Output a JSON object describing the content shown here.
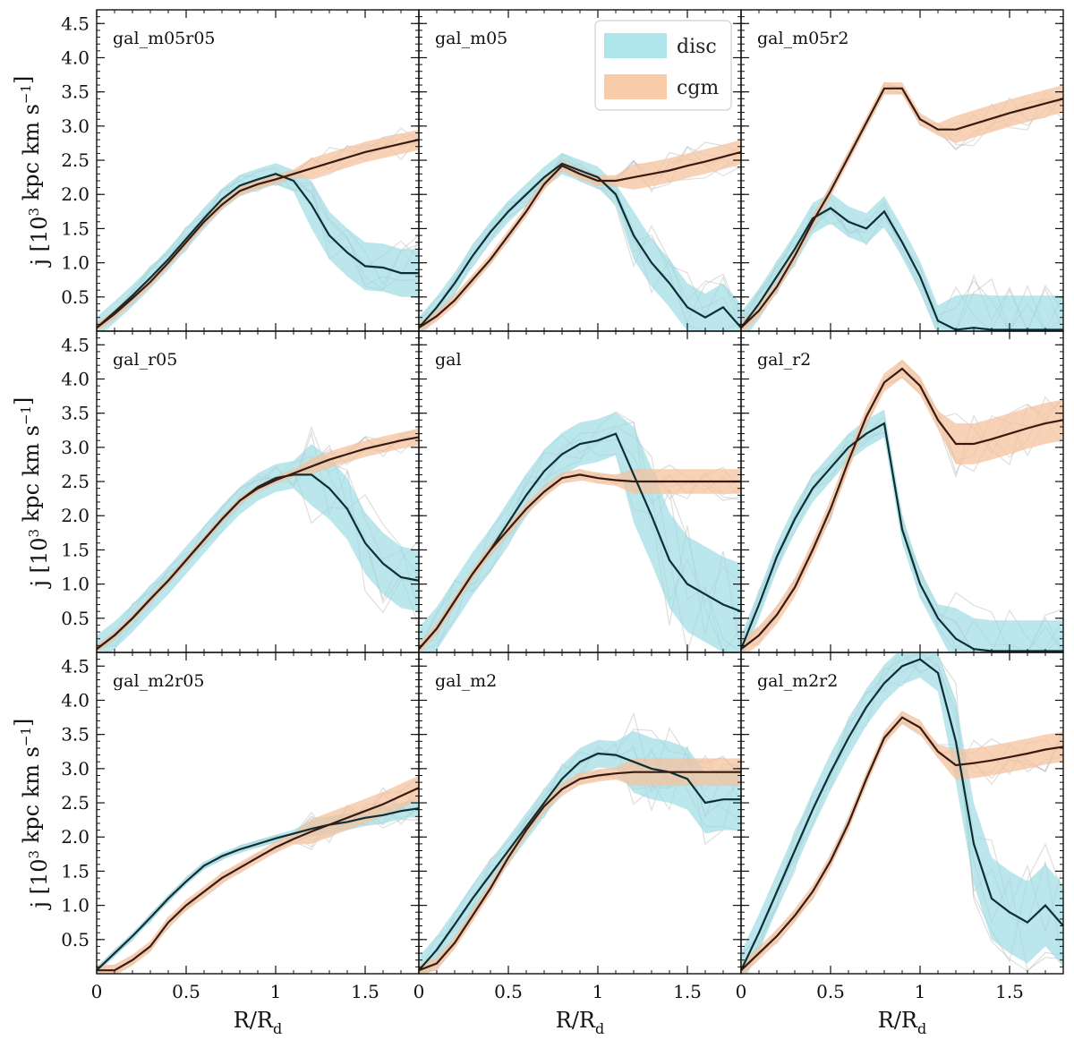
{
  "chart_data": {
    "type": "line",
    "title": "",
    "xlabel": "R/R",
    "xlabel_subscript": "d",
    "ylabel": "j [10",
    "ylabel_exponent": "3",
    "ylabel_units": " kpc km s",
    "ylabel_units_exponent": "−1",
    "ylabel_close": "]",
    "xlim": [
      0,
      1.8
    ],
    "ylim": [
      0.0,
      4.7
    ],
    "xticks": [
      "0",
      "0.5",
      "1",
      "1.5"
    ],
    "yticks": [
      "0.5",
      "1.0",
      "1.5",
      "2.0",
      "2.5",
      "3.0",
      "3.5",
      "4.0",
      "4.5"
    ],
    "grid": false,
    "legend_location": "top-right of top-middle panel",
    "legend": [
      {
        "label": "disc",
        "color": "#aee6ec"
      },
      {
        "label": "cgm",
        "color": "#f8cba9"
      }
    ],
    "colors": {
      "disc_band": "#9edbe3",
      "cgm_band": "#f4c39f",
      "disc_line": "#0c2f36",
      "cgm_line": "#3a1a10",
      "spaghetti": "#b5b5b5"
    },
    "panels": [
      {
        "name": "gal_m05r05",
        "x": [
          0,
          0.1,
          0.2,
          0.3,
          0.4,
          0.5,
          0.6,
          0.7,
          0.8,
          0.9,
          1.0,
          1.1,
          1.2,
          1.3,
          1.4,
          1.5,
          1.6,
          1.7,
          1.8
        ],
        "disc": [
          0.05,
          0.28,
          0.52,
          0.78,
          1.05,
          1.35,
          1.65,
          1.93,
          2.13,
          2.22,
          2.3,
          2.2,
          1.85,
          1.4,
          1.15,
          0.95,
          0.93,
          0.85,
          0.85
        ],
        "disc_spread": 0.35,
        "cgm": [
          0.05,
          0.25,
          0.48,
          0.72,
          1.0,
          1.3,
          1.6,
          1.85,
          2.05,
          2.15,
          2.22,
          2.3,
          2.38,
          2.46,
          2.54,
          2.62,
          2.68,
          2.74,
          2.8
        ],
        "cgm_spread": 0.15
      },
      {
        "name": "gal_m05",
        "x": [
          0,
          0.1,
          0.2,
          0.3,
          0.4,
          0.5,
          0.6,
          0.7,
          0.8,
          0.9,
          1.0,
          1.1,
          1.2,
          1.3,
          1.4,
          1.5,
          1.6,
          1.7,
          1.8
        ],
        "disc": [
          0.05,
          0.35,
          0.7,
          1.1,
          1.45,
          1.75,
          2.0,
          2.25,
          2.45,
          2.35,
          2.25,
          2.0,
          1.4,
          1.0,
          0.7,
          0.35,
          0.2,
          0.35,
          0.05
        ],
        "disc_spread": 0.35,
        "cgm": [
          0.05,
          0.22,
          0.45,
          0.75,
          1.05,
          1.4,
          1.75,
          2.15,
          2.42,
          2.3,
          2.2,
          2.2,
          2.25,
          2.3,
          2.35,
          2.42,
          2.48,
          2.55,
          2.62
        ],
        "cgm_spread": 0.18
      },
      {
        "name": "gal_m05r2",
        "x": [
          0,
          0.1,
          0.2,
          0.3,
          0.4,
          0.5,
          0.6,
          0.7,
          0.8,
          0.9,
          1.0,
          1.1,
          1.2,
          1.3,
          1.4,
          1.5,
          1.6,
          1.7,
          1.8
        ],
        "disc": [
          0.05,
          0.4,
          0.8,
          1.2,
          1.65,
          1.8,
          1.6,
          1.5,
          1.75,
          1.3,
          0.8,
          0.15,
          0.02,
          0.05,
          0.02,
          0.02,
          0.02,
          0.02,
          0.02
        ],
        "disc_spread": 0.5,
        "cgm": [
          0.05,
          0.3,
          0.65,
          1.1,
          1.6,
          2.05,
          2.55,
          3.05,
          3.55,
          3.55,
          3.1,
          2.95,
          2.95,
          3.03,
          3.11,
          3.19,
          3.26,
          3.33,
          3.4
        ],
        "cgm_spread": 0.2
      },
      {
        "name": "gal_r05",
        "x": [
          0,
          0.1,
          0.2,
          0.3,
          0.4,
          0.5,
          0.6,
          0.7,
          0.8,
          0.9,
          1.0,
          1.1,
          1.2,
          1.3,
          1.4,
          1.5,
          1.6,
          1.7,
          1.8
        ],
        "disc": [
          0.05,
          0.25,
          0.5,
          0.78,
          1.05,
          1.35,
          1.65,
          1.95,
          2.22,
          2.42,
          2.55,
          2.6,
          2.6,
          2.4,
          2.1,
          1.6,
          1.3,
          1.1,
          1.05
        ],
        "disc_spread": 0.45,
        "cgm": [
          0.05,
          0.25,
          0.5,
          0.78,
          1.05,
          1.35,
          1.65,
          1.95,
          2.22,
          2.4,
          2.52,
          2.62,
          2.72,
          2.82,
          2.9,
          2.98,
          3.04,
          3.1,
          3.15
        ],
        "cgm_spread": 0.12
      },
      {
        "name": "gal",
        "x": [
          0,
          0.1,
          0.2,
          0.3,
          0.4,
          0.5,
          0.6,
          0.7,
          0.8,
          0.9,
          1.0,
          1.1,
          1.2,
          1.3,
          1.4,
          1.5,
          1.6,
          1.7,
          1.8
        ],
        "disc": [
          0.05,
          0.35,
          0.75,
          1.15,
          1.5,
          1.9,
          2.3,
          2.65,
          2.9,
          3.05,
          3.1,
          3.2,
          2.6,
          2.0,
          1.35,
          1.0,
          0.85,
          0.7,
          0.6
        ],
        "disc_spread": 0.7,
        "cgm": [
          0.05,
          0.35,
          0.75,
          1.15,
          1.5,
          1.8,
          2.1,
          2.35,
          2.55,
          2.6,
          2.55,
          2.52,
          2.5,
          2.5,
          2.5,
          2.5,
          2.5,
          2.5,
          2.5
        ],
        "cgm_spread": 0.18
      },
      {
        "name": "gal_r2",
        "x": [
          0,
          0.1,
          0.2,
          0.3,
          0.4,
          0.5,
          0.6,
          0.7,
          0.8,
          0.9,
          1.0,
          1.1,
          1.2,
          1.3,
          1.4,
          1.5,
          1.6,
          1.7,
          1.8
        ],
        "disc": [
          0.05,
          0.7,
          1.4,
          1.95,
          2.4,
          2.7,
          3.0,
          3.2,
          3.35,
          1.8,
          1.0,
          0.5,
          0.2,
          0.05,
          0.02,
          0.02,
          0.02,
          0.02,
          0.02
        ],
        "disc_spread": 0.45,
        "cgm": [
          0.05,
          0.25,
          0.55,
          0.95,
          1.5,
          2.1,
          2.8,
          3.45,
          3.95,
          4.15,
          3.9,
          3.4,
          3.05,
          3.05,
          3.12,
          3.2,
          3.28,
          3.35,
          3.4
        ],
        "cgm_spread": 0.3
      },
      {
        "name": "gal_m2r05",
        "x": [
          0,
          0.1,
          0.2,
          0.3,
          0.4,
          0.5,
          0.6,
          0.7,
          0.8,
          0.9,
          1.0,
          1.1,
          1.2,
          1.3,
          1.4,
          1.5,
          1.6,
          1.7,
          1.8
        ],
        "disc": [
          0.05,
          0.3,
          0.55,
          0.82,
          1.1,
          1.35,
          1.58,
          1.72,
          1.82,
          1.9,
          1.98,
          2.05,
          2.12,
          2.18,
          2.22,
          2.28,
          2.32,
          2.38,
          2.42
        ],
        "disc_spread": 0.12,
        "cgm": [
          0.05,
          0.05,
          0.2,
          0.4,
          0.75,
          1.0,
          1.2,
          1.4,
          1.55,
          1.7,
          1.85,
          1.97,
          2.08,
          2.18,
          2.28,
          2.38,
          2.48,
          2.6,
          2.72
        ],
        "cgm_spread": 0.18
      },
      {
        "name": "gal_m2",
        "x": [
          0,
          0.1,
          0.2,
          0.3,
          0.4,
          0.5,
          0.6,
          0.7,
          0.8,
          0.9,
          1.0,
          1.1,
          1.2,
          1.3,
          1.4,
          1.5,
          1.6,
          1.7,
          1.8
        ],
        "disc": [
          0.05,
          0.35,
          0.72,
          1.1,
          1.45,
          1.8,
          2.15,
          2.5,
          2.85,
          3.1,
          3.22,
          3.2,
          3.1,
          3.0,
          2.95,
          2.85,
          2.5,
          2.55,
          2.55
        ],
        "disc_spread": 0.45,
        "cgm": [
          0.05,
          0.15,
          0.45,
          0.85,
          1.25,
          1.7,
          2.1,
          2.45,
          2.7,
          2.85,
          2.9,
          2.93,
          2.95,
          2.95,
          2.95,
          2.95,
          2.95,
          2.95,
          2.95
        ],
        "cgm_spread": 0.2
      },
      {
        "name": "gal_m2r2",
        "x": [
          0,
          0.1,
          0.2,
          0.3,
          0.4,
          0.5,
          0.6,
          0.7,
          0.8,
          0.9,
          1.0,
          1.1,
          1.2,
          1.3,
          1.4,
          1.5,
          1.6,
          1.7,
          1.8
        ],
        "disc": [
          0.05,
          0.6,
          1.2,
          1.8,
          2.4,
          2.95,
          3.45,
          3.9,
          4.25,
          4.5,
          4.6,
          4.4,
          3.4,
          1.9,
          1.1,
          0.9,
          0.75,
          1.0,
          0.7
        ],
        "disc_spread": 0.6,
        "cgm": [
          0.05,
          0.3,
          0.55,
          0.85,
          1.2,
          1.65,
          2.2,
          2.85,
          3.45,
          3.75,
          3.6,
          3.25,
          3.05,
          3.08,
          3.12,
          3.17,
          3.22,
          3.28,
          3.32
        ],
        "cgm_spread": 0.22
      }
    ]
  }
}
